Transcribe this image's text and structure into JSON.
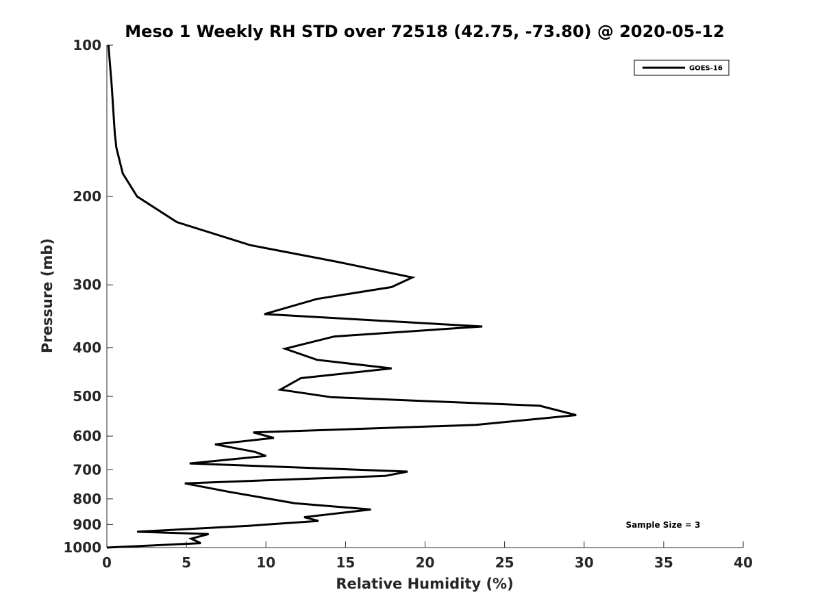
{
  "chart_data": {
    "type": "line",
    "title": "Meso 1 Weekly RH STD over 72518 (42.75, -73.80) @ 2020-05-12",
    "xlabel": "Relative Humidity (%)",
    "ylabel": "Pressure (mb)",
    "xlim": [
      0,
      40
    ],
    "ylim": [
      100,
      1000
    ],
    "yscale": "log",
    "xticks": [
      0,
      5,
      10,
      15,
      20,
      25,
      30,
      35,
      40
    ],
    "xtick_labels": [
      "0",
      "5",
      "10",
      "15",
      "20",
      "25",
      "30",
      "35",
      "40"
    ],
    "yticks": [
      100,
      200,
      300,
      400,
      500,
      600,
      700,
      800,
      900,
      1000
    ],
    "ytick_labels": [
      "100",
      "200",
      "300",
      "400",
      "500",
      "600",
      "700",
      "800",
      "900",
      "1000"
    ],
    "grid": false,
    "legend_position": "top-right",
    "series": [
      {
        "name": "GOES-16",
        "color": "#000000",
        "x": [
          0.1,
          0.3,
          0.5,
          0.6,
          1.0,
          1.9,
          4.4,
          9.0,
          14.5,
          19.2,
          17.9,
          13.2,
          9.9,
          23.6,
          14.3,
          11.2,
          13.2,
          17.9,
          12.2,
          10.9,
          14.1,
          27.2,
          29.5,
          23.2,
          9.2,
          10.5,
          6.8,
          9.3,
          10.0,
          5.2,
          18.9,
          17.5,
          4.9,
          7.7,
          11.8,
          16.6,
          12.4,
          13.3,
          8.9,
          1.9,
          6.4,
          5.3,
          5.9,
          0.0
        ],
        "y": [
          100,
          120,
          150,
          160,
          180,
          200,
          225,
          250,
          270,
          290,
          303,
          320,
          343,
          363,
          380,
          402,
          423,
          440,
          460,
          485,
          502,
          522,
          545,
          570,
          590,
          605,
          623,
          645,
          657,
          680,
          706,
          720,
          745,
          775,
          816,
          840,
          870,
          885,
          905,
          930,
          940,
          960,
          980,
          1000
        ]
      }
    ],
    "annotations": [
      "Sample Size = 3"
    ]
  }
}
